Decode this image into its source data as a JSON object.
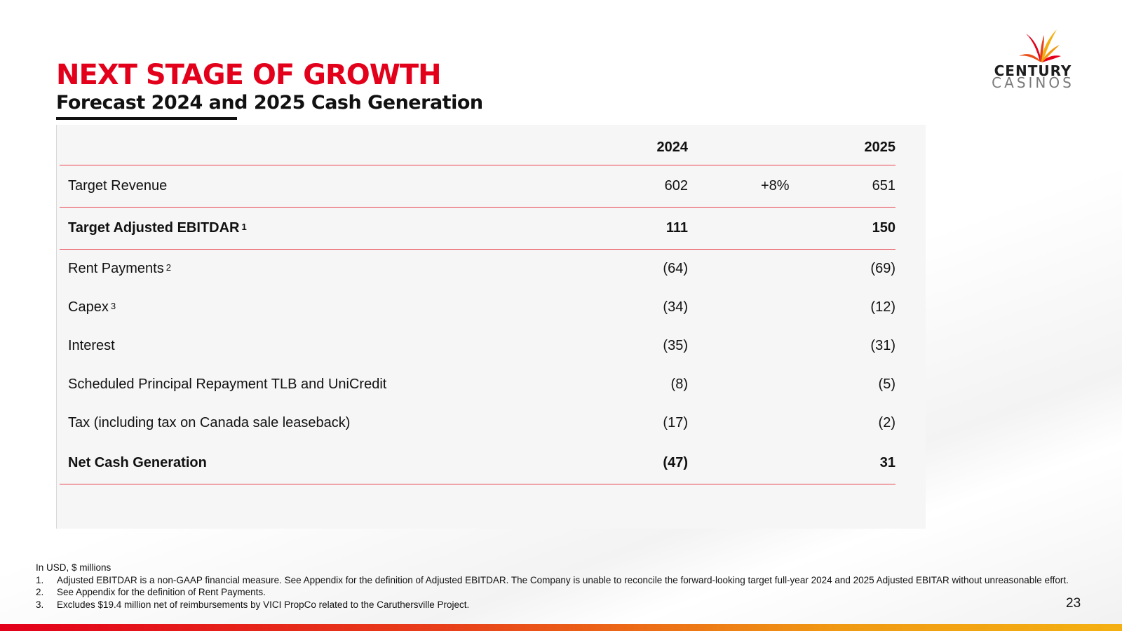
{
  "slide": {
    "title": "NEXT STAGE OF GROWTH",
    "subtitle": "Forecast 2024 and 2025 Cash Generation",
    "page_number": "23",
    "accent_color": "#e3001b"
  },
  "logo": {
    "line1": "CENTURY",
    "line2": "CASINOS",
    "icon": "starburst-logo-icon"
  },
  "table": {
    "headers": {
      "label": "",
      "y2024": "2024",
      "growth": "",
      "y2025": "2025"
    },
    "rows": [
      {
        "label": "Target Revenue",
        "sup": "",
        "y2024": "602",
        "growth": "+8%",
        "y2025": "651",
        "bold": false
      },
      {
        "label": "Target Adjusted EBITDAR",
        "sup": "1",
        "y2024": "111",
        "growth": "",
        "y2025": "150",
        "bold": true
      },
      {
        "label": "Rent Payments",
        "sup": "2",
        "y2024": "(64)",
        "growth": "",
        "y2025": "(69)",
        "bold": false
      },
      {
        "label": "Capex",
        "sup": "3",
        "y2024": "(34)",
        "growth": "",
        "y2025": "(12)",
        "bold": false
      },
      {
        "label": "Interest",
        "sup": "",
        "y2024": "(35)",
        "growth": "",
        "y2025": "(31)",
        "bold": false
      },
      {
        "label": "Scheduled Principal Repayment TLB and UniCredit",
        "sup": "",
        "y2024": "(8)",
        "growth": "",
        "y2025": "(5)",
        "bold": false
      },
      {
        "label": "Tax (including tax on Canada sale leaseback)",
        "sup": "",
        "y2024": "(17)",
        "growth": "",
        "y2025": "(2)",
        "bold": false
      },
      {
        "label": "Net Cash Generation",
        "sup": "",
        "y2024": "(47)",
        "growth": "",
        "y2025": "31",
        "bold": true
      }
    ]
  },
  "footnotes": {
    "intro": "In USD, $ millions",
    "items": [
      {
        "num": "1.",
        "text": "Adjusted EBITDAR is a non-GAAP financial measure. See Appendix for the definition of Adjusted EBITDAR. The Company is unable to reconcile the forward-looking target full-year 2024 and 2025 Adjusted EBITAR without unreasonable effort."
      },
      {
        "num": "2.",
        "text": "See Appendix for the definition of Rent Payments."
      },
      {
        "num": "3.",
        "text": "Excludes $19.4 million net of reimbursements by VICI PropCo related to the Caruthersville Project."
      }
    ]
  }
}
